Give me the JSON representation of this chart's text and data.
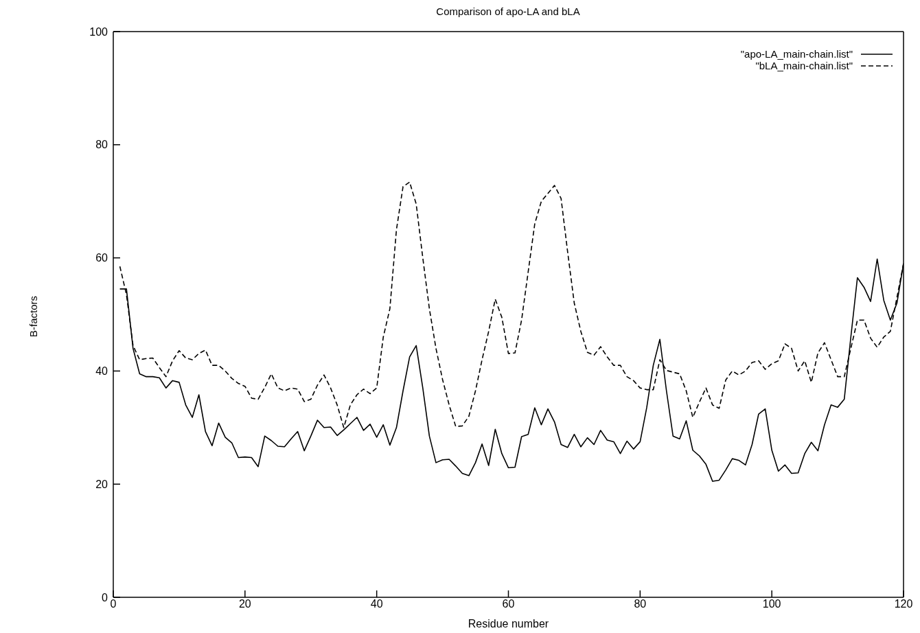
{
  "chart_data": {
    "type": "line",
    "title": "Comparison of apo-LA and bLA",
    "xlabel": "Residue number",
    "ylabel": "B-factors",
    "x": [
      1,
      2,
      3,
      4,
      5,
      6,
      7,
      8,
      9,
      10,
      11,
      12,
      13,
      14,
      15,
      16,
      17,
      18,
      19,
      20,
      21,
      22,
      23,
      24,
      25,
      26,
      27,
      28,
      29,
      30,
      31,
      32,
      33,
      34,
      35,
      36,
      37,
      38,
      39,
      40,
      41,
      42,
      43,
      44,
      45,
      46,
      47,
      48,
      49,
      50,
      51,
      52,
      53,
      54,
      55,
      56,
      57,
      58,
      59,
      60,
      61,
      62,
      63,
      64,
      65,
      66,
      67,
      68,
      69,
      70,
      71,
      72,
      73,
      74,
      75,
      76,
      77,
      78,
      79,
      80,
      81,
      82,
      83,
      84,
      85,
      86,
      87,
      88,
      89,
      90,
      91,
      92,
      93,
      94,
      95,
      96,
      97,
      98,
      99,
      100,
      101,
      102,
      103,
      104,
      105,
      106,
      107,
      108,
      109,
      110,
      111,
      112,
      113,
      114,
      115,
      116,
      117,
      118,
      119,
      120
    ],
    "series": [
      {
        "name": "\"apo-LA_main-chain.list\"",
        "color": "#000000",
        "line_style": "solid",
        "values": [
          54.5,
          54.5,
          44,
          39.5,
          39,
          39,
          38.8,
          37,
          38.3,
          38,
          34,
          31.8,
          35.8,
          29.3,
          26.8,
          30.8,
          28.3,
          27.3,
          24.7,
          24.8,
          24.7,
          23.1,
          28.5,
          27.7,
          26.7,
          26.6,
          28,
          29.3,
          25.9,
          28.5,
          31.3,
          30,
          30.1,
          28.6,
          29.6,
          30.7,
          31.8,
          29.5,
          30.6,
          28.3,
          30.5,
          26.9,
          30,
          36.5,
          42.5,
          44.5,
          37,
          28.5,
          23.8,
          24.3,
          24.4,
          23.2,
          21.9,
          21.5,
          23.8,
          27.1,
          23.3,
          29.7,
          25.4,
          22.9,
          23,
          28.4,
          28.8,
          33.5,
          30.5,
          33.3,
          31,
          27,
          26.5,
          28.8,
          26.6,
          28.2,
          27,
          29.5,
          27.8,
          27.5,
          25.4,
          27.6,
          26.2,
          27.5,
          33.5,
          41,
          45.6,
          36.5,
          28.5,
          28,
          31.2,
          26,
          25,
          23.5,
          20.5,
          20.7,
          22.5,
          24.5,
          24.2,
          23.4,
          27,
          32.4,
          33.3,
          26,
          22.3,
          23.4,
          21.9,
          22,
          25.4,
          27.4,
          25.9,
          30.5,
          34,
          33.6,
          35,
          46,
          56.5,
          54.8,
          52.3,
          59.8,
          52.5,
          49,
          52,
          59
        ]
      },
      {
        "name": "\"bLA_main-chain.list\"",
        "color": "#000000",
        "line_style": "dashed",
        "values": [
          58.5,
          53.5,
          44.5,
          42,
          42.2,
          42.3,
          40.6,
          39,
          41.8,
          43.6,
          42.3,
          42,
          43.1,
          43.7,
          41,
          41,
          40,
          38.7,
          37.8,
          37.3,
          35.2,
          35,
          37.1,
          39.5,
          37,
          36.5,
          37,
          36.8,
          34.6,
          35,
          37.5,
          39.3,
          37,
          34,
          30,
          34,
          35.8,
          36.8,
          36,
          37,
          46,
          51,
          65,
          72.6,
          73.4,
          69.5,
          60,
          51,
          44,
          38.5,
          34,
          30.2,
          30.3,
          32,
          36.5,
          42,
          47,
          52.7,
          49.5,
          43.1,
          43.2,
          49,
          57.5,
          66,
          70,
          71.4,
          72.8,
          70.5,
          61,
          52,
          47,
          43.3,
          42.8,
          44.3,
          42.5,
          41,
          41,
          39,
          38.3,
          37,
          36.7,
          36.7,
          42,
          40.1,
          39.8,
          39.5,
          36.5,
          31.8,
          34.5,
          37,
          34,
          33.4,
          38.4,
          40,
          39.3,
          40,
          41.5,
          41.8,
          40.3,
          41.3,
          41.8,
          44.8,
          44,
          40,
          41.8,
          38,
          43.2,
          45,
          42,
          39,
          39,
          44,
          49,
          49,
          45.8,
          44.2,
          46,
          47,
          53,
          59
        ]
      }
    ],
    "xlim": [
      0,
      120
    ],
    "xticks": [
      0,
      20,
      40,
      60,
      80,
      100,
      120
    ],
    "ylim": [
      0,
      100
    ],
    "yticks": [
      0,
      20,
      40,
      60,
      80,
      100
    ],
    "legend": "top right"
  }
}
